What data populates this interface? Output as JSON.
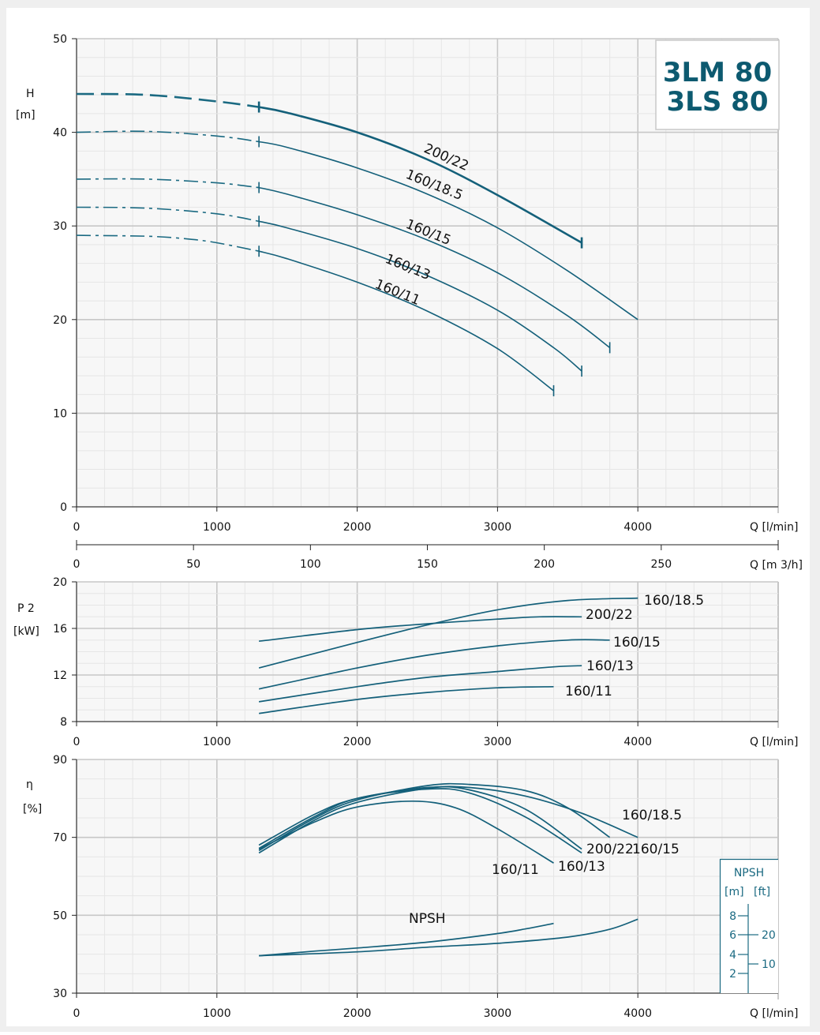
{
  "title": {
    "line1": "3LM 80",
    "line2": "3LS 80"
  },
  "colors": {
    "curve": "#1b6a82",
    "curve_dark": "#14607a",
    "grid_major": "#c7c7c7",
    "grid_minor": "#e6e6e6",
    "panel": "#f7f7f7",
    "background": "#efefef",
    "title": "#0d5a70"
  },
  "chart_data": [
    {
      "id": "head",
      "type": "line",
      "ylabel": "H",
      "yunit": "[m]",
      "xlabel": "Q [l/min]",
      "xlim": [
        0,
        5000
      ],
      "ylim": [
        0,
        50
      ],
      "xticks": [
        "0",
        "1000",
        "2000",
        "3000",
        "4000"
      ],
      "yticks": [
        "0",
        "10",
        "20",
        "30",
        "40",
        "50"
      ],
      "series": [
        {
          "name": "200/22",
          "bold": true,
          "dashed_to": 1300,
          "x": [
            0,
            500,
            1000,
            1300,
            1500,
            2000,
            2500,
            3000,
            3600
          ],
          "y": [
            44.1,
            44.0,
            43.3,
            42.7,
            42.1,
            40.0,
            37.1,
            33.3,
            28.2
          ],
          "end_tick": 3600,
          "start_tick": 1300
        },
        {
          "name": "160/18.5",
          "dashed_to": 1300,
          "x": [
            0,
            500,
            1000,
            1300,
            1500,
            2000,
            2500,
            3000,
            3500,
            4000
          ],
          "y": [
            40.0,
            40.1,
            39.6,
            39.0,
            38.4,
            36.2,
            33.4,
            29.8,
            25.2,
            20.0
          ],
          "start_tick": 1300
        },
        {
          "name": "160/15",
          "dashed_to": 1300,
          "x": [
            0,
            500,
            1000,
            1300,
            1500,
            2000,
            2500,
            3000,
            3500,
            3800
          ],
          "y": [
            35.0,
            35.0,
            34.6,
            34.1,
            33.4,
            31.2,
            28.5,
            25.0,
            20.4,
            17.0
          ],
          "start_tick": 1300,
          "end_tick": 3800
        },
        {
          "name": "160/13",
          "dashed_to": 1300,
          "x": [
            0,
            500,
            1000,
            1300,
            1500,
            2000,
            2500,
            3000,
            3400,
            3600
          ],
          "y": [
            32.0,
            31.9,
            31.3,
            30.5,
            29.8,
            27.6,
            24.7,
            21.0,
            17.0,
            14.5
          ],
          "start_tick": 1300,
          "end_tick": 3600
        },
        {
          "name": "160/11",
          "dashed_to": 1300,
          "x": [
            0,
            500,
            800,
            1000,
            1300,
            1500,
            2000,
            2500,
            3000,
            3400
          ],
          "y": [
            29.0,
            28.9,
            28.6,
            28.2,
            27.3,
            26.5,
            24.0,
            20.9,
            16.9,
            12.4
          ],
          "start_tick": 1300,
          "end_tick": 3400
        }
      ]
    },
    {
      "id": "m3h_axis",
      "xlabel": "Q [m 3/h]",
      "xticks": [
        "0",
        "50",
        "100",
        "150",
        "200",
        "250"
      ],
      "xvalues": [
        0,
        50,
        100,
        150,
        200,
        250
      ],
      "xlim": [
        0,
        300
      ]
    },
    {
      "id": "power",
      "type": "line",
      "ylabel": "P 2",
      "yunit": "[kW]",
      "xlabel": "Q [l/min]",
      "xlim": [
        0,
        5000
      ],
      "ylim": [
        8,
        20
      ],
      "xticks": [
        "0",
        "1000",
        "2000",
        "3000",
        "4000"
      ],
      "yticks": [
        "8",
        "12",
        "16",
        "20"
      ],
      "series": [
        {
          "name": "160/18.5",
          "x": [
            1300,
            2000,
            2500,
            3000,
            3500,
            4000
          ],
          "y": [
            12.6,
            14.8,
            16.3,
            17.6,
            18.4,
            18.6
          ]
        },
        {
          "name": "200/22",
          "x": [
            1300,
            2000,
            2500,
            3000,
            3300,
            3600
          ],
          "y": [
            14.9,
            15.9,
            16.4,
            16.8,
            17.0,
            17.0
          ]
        },
        {
          "name": "160/15",
          "x": [
            1300,
            2000,
            2500,
            3000,
            3500,
            3800
          ],
          "y": [
            10.8,
            12.6,
            13.7,
            14.5,
            15.0,
            15.0
          ]
        },
        {
          "name": "160/13",
          "x": [
            1300,
            2000,
            2500,
            3000,
            3400,
            3600
          ],
          "y": [
            9.7,
            11.0,
            11.8,
            12.3,
            12.7,
            12.8
          ]
        },
        {
          "name": "160/11",
          "x": [
            1300,
            2000,
            2500,
            3000,
            3400
          ],
          "y": [
            8.7,
            9.9,
            10.5,
            10.9,
            11.0
          ]
        }
      ]
    },
    {
      "id": "efficiency",
      "type": "line",
      "ylabel": "η",
      "yunit": "[%]",
      "xlabel": "Q [l/min]",
      "xlim": [
        0,
        5000
      ],
      "ylim": [
        30,
        90
      ],
      "xticks": [
        "0",
        "1000",
        "2000",
        "3000",
        "4000"
      ],
      "yticks": [
        "30",
        "50",
        "70",
        "90"
      ],
      "series": [
        {
          "name": "160/18.5",
          "x": [
            1300,
            1700,
            2000,
            2500,
            2800,
            3200,
            3600,
            4000
          ],
          "y": [
            66.0,
            74.5,
            79.0,
            82.6,
            82.8,
            80.6,
            76.2,
            70.0
          ]
        },
        {
          "name": "200/22",
          "x": [
            1300,
            1700,
            2000,
            2500,
            2800,
            3200,
            3600
          ],
          "y": [
            68.0,
            76.0,
            80.0,
            82.8,
            82.2,
            77.2,
            67.0
          ]
        },
        {
          "name": "160/15",
          "x": [
            1300,
            1700,
            2000,
            2500,
            2800,
            3200,
            3500,
            3800
          ],
          "y": [
            66.6,
            75.0,
            79.6,
            83.3,
            83.6,
            82.0,
            77.6,
            70.0
          ]
        },
        {
          "name": "160/13",
          "x": [
            1300,
            1700,
            2000,
            2500,
            2800,
            3200,
            3600
          ],
          "y": [
            67.2,
            75.4,
            80.0,
            82.4,
            81.4,
            75.2,
            66.0
          ]
        },
        {
          "name": "160/11",
          "x": [
            1300,
            1700,
            2000,
            2400,
            2700,
            3000,
            3400
          ],
          "y": [
            67.0,
            74.0,
            77.8,
            79.3,
            77.6,
            72.2,
            63.4
          ]
        }
      ],
      "npsh": {
        "label": "NPSH",
        "series": [
          {
            "x": [
              1300,
              1700,
              2000,
              2500,
              3000,
              3200,
              3400
            ],
            "y": [
              39.6,
              40.8,
              41.6,
              43.1,
              45.3,
              46.5,
              47.9
            ]
          },
          {
            "x": [
              1300,
              2000,
              2500,
              3000,
              3500,
              3800,
              4000
            ],
            "y": [
              39.6,
              40.6,
              41.8,
              42.8,
              44.4,
              46.4,
              49.0
            ]
          }
        ],
        "scale": {
          "title": "NPSH",
          "unit_m": "[m]",
          "unit_ft": "[ft]",
          "m_ticks": [
            "8",
            "6",
            "4",
            "2"
          ],
          "ft_ticks": [
            "20",
            "10"
          ]
        }
      },
      "labels": [
        {
          "text": "160/18.5"
        },
        {
          "text": "200/22"
        },
        {
          "text": "160/15"
        },
        {
          "text": "160/13"
        },
        {
          "text": "160/11"
        }
      ]
    }
  ]
}
